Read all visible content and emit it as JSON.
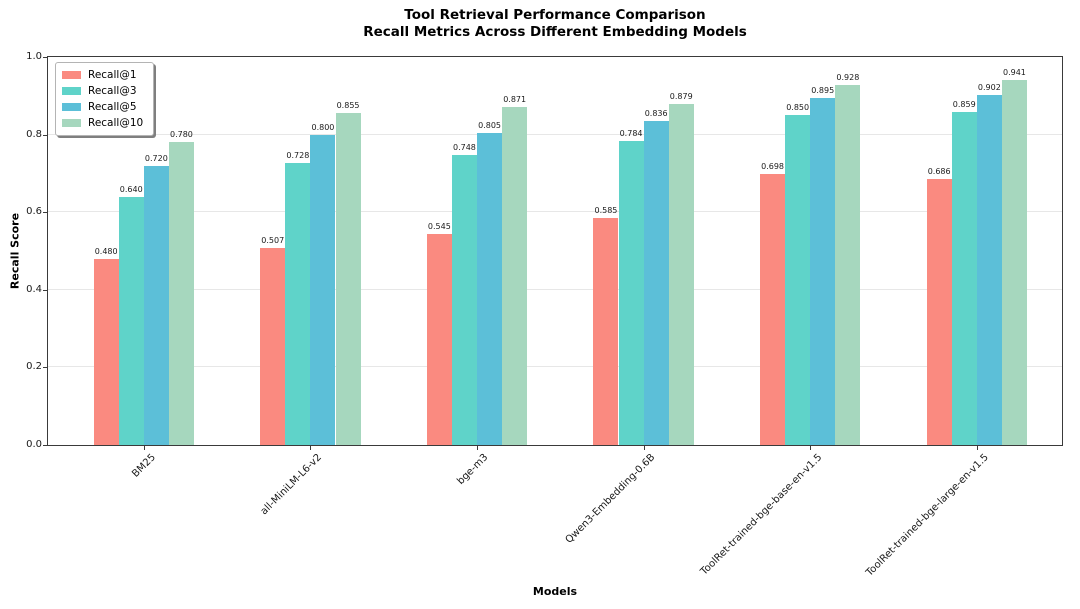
{
  "chart_data": {
    "type": "bar",
    "title": "Tool Retrieval Performance Comparison",
    "subtitle": "Recall Metrics Across Different Embedding Models",
    "xlabel": "Models",
    "ylabel": "Recall Score",
    "ylim": [
      0.0,
      1.0
    ],
    "yticks": [
      0.0,
      0.2,
      0.4,
      0.6,
      0.8,
      1.0
    ],
    "grid": true,
    "legend_position": "upper-left",
    "value_label_decimals": 3,
    "categories": [
      "BM25",
      "all-MiniLM-L6-v2",
      "bge-m3",
      "Qwen3-Embedding-0.6B",
      "ToolRet-trained-bge-base-en-v1.5",
      "ToolRet-trained-bge-large-en-v1.5"
    ],
    "series": [
      {
        "name": "Recall@1",
        "color": "#FA8A80",
        "values": [
          0.48,
          0.507,
          0.545,
          0.585,
          0.698,
          0.686
        ]
      },
      {
        "name": "Recall@3",
        "color": "#5FD3C9",
        "values": [
          0.64,
          0.728,
          0.748,
          0.784,
          0.85,
          0.859
        ]
      },
      {
        "name": "Recall@5",
        "color": "#5CBFD8",
        "values": [
          0.72,
          0.8,
          0.805,
          0.836,
          0.895,
          0.902
        ]
      },
      {
        "name": "Recall@10",
        "color": "#A6D7BE",
        "values": [
          0.78,
          0.855,
          0.871,
          0.879,
          0.928,
          0.941
        ]
      }
    ]
  }
}
